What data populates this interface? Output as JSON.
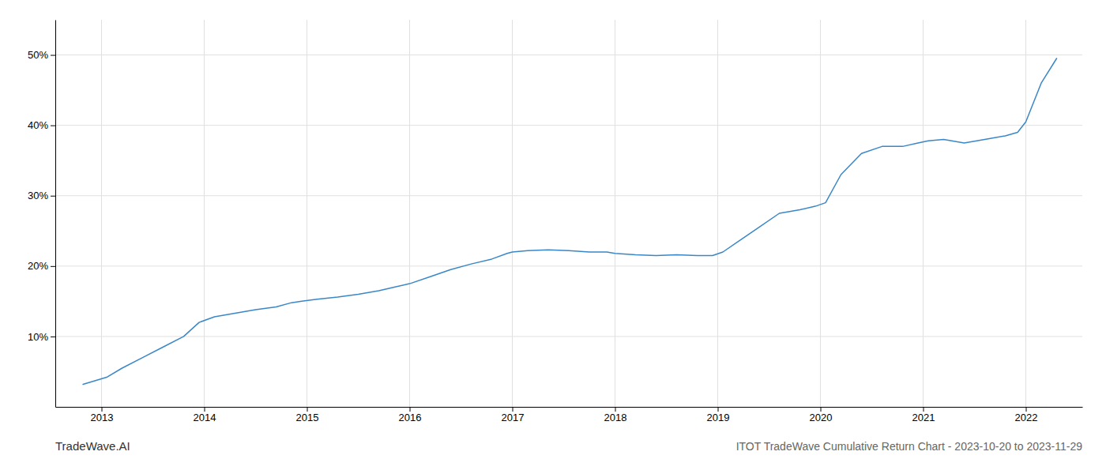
{
  "chart_data": {
    "type": "line",
    "title": "ITOT TradeWave Cumulative Return Chart - 2023-10-20 to 2023-11-29",
    "annotations": [
      "TradeWave.AI"
    ],
    "color": "#3a87c8",
    "grid": true,
    "x": [
      2012.82,
      2013.05,
      2013.2,
      2013.4,
      2013.6,
      2013.8,
      2013.95,
      2014.1,
      2014.3,
      2014.5,
      2014.7,
      2014.85,
      2014.95,
      2015.1,
      2015.3,
      2015.5,
      2015.7,
      2015.85,
      2016.0,
      2016.2,
      2016.4,
      2016.6,
      2016.8,
      2016.95,
      2017.0,
      2017.15,
      2017.35,
      2017.55,
      2017.75,
      2017.92,
      2018.0,
      2018.2,
      2018.4,
      2018.6,
      2018.8,
      2018.95,
      2019.05,
      2019.2,
      2019.4,
      2019.6,
      2019.8,
      2019.95,
      2020.05,
      2020.2,
      2020.4,
      2020.6,
      2020.8,
      2020.95,
      2021.05,
      2021.2,
      2021.4,
      2021.6,
      2021.8,
      2021.92,
      2022.0,
      2022.15,
      2022.3
    ],
    "values": [
      3.2,
      4.2,
      5.5,
      7.0,
      8.5,
      10.0,
      12.0,
      12.8,
      13.3,
      13.8,
      14.2,
      14.8,
      15.0,
      15.3,
      15.6,
      16.0,
      16.5,
      17.0,
      17.5,
      18.5,
      19.5,
      20.3,
      21.0,
      21.8,
      22.0,
      22.2,
      22.3,
      22.2,
      22.0,
      22.0,
      21.8,
      21.6,
      21.5,
      21.6,
      21.5,
      21.5,
      22.0,
      23.5,
      25.5,
      27.5,
      28.0,
      28.5,
      29.0,
      33.0,
      36.0,
      37.0,
      37.0,
      37.5,
      37.8,
      38.0,
      37.5,
      38.0,
      38.5,
      39.0,
      40.5,
      46.0,
      49.5
    ],
    "xlim": [
      2012.55,
      2022.55
    ],
    "xticks": [
      2013,
      2014,
      2015,
      2016,
      2017,
      2018,
      2019,
      2020,
      2021,
      2022
    ],
    "ylim": [
      0,
      55
    ],
    "yticks": [
      {
        "value": 10,
        "label": "10%"
      },
      {
        "value": 20,
        "label": "20%"
      },
      {
        "value": 30,
        "label": "30%"
      },
      {
        "value": 40,
        "label": "40%"
      },
      {
        "value": 50,
        "label": "50%"
      }
    ]
  }
}
